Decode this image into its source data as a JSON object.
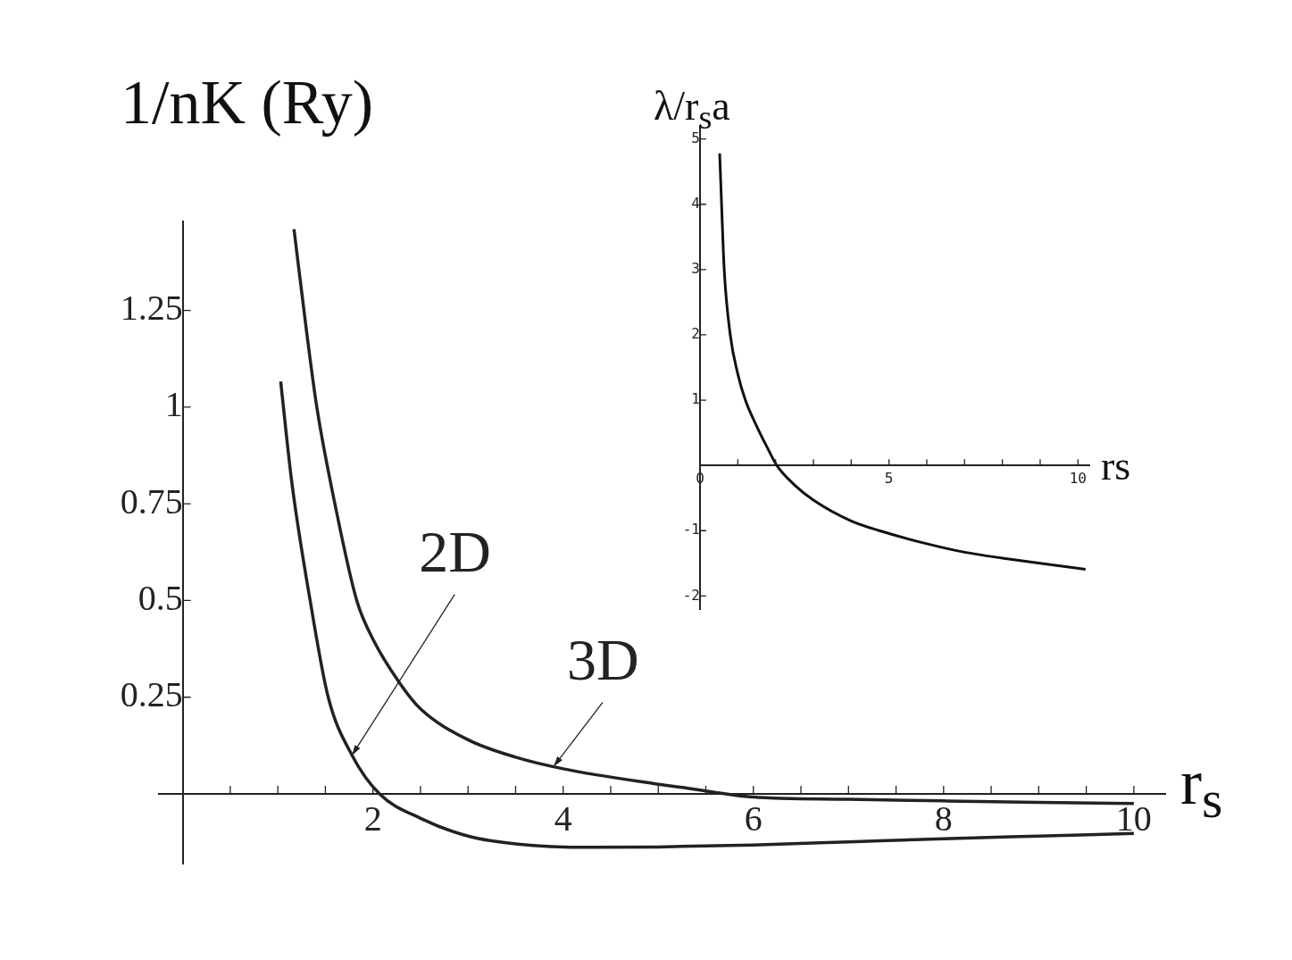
{
  "chart_data": [
    {
      "type": "line",
      "xlabel": "r$_{s}$",
      "ylabel": "1/nK (Ry)",
      "xlim": [
        -0.25,
        10.33
      ],
      "ylim": [
        -0.18,
        1.48
      ],
      "xticks": [
        {
          "value": 0.5,
          "label": null
        },
        {
          "value": 1,
          "label": null
        },
        {
          "value": 1.5,
          "label": null
        },
        2,
        {
          "value": 2.5,
          "label": null
        },
        {
          "value": 3,
          "label": null
        },
        {
          "value": 3.5,
          "label": null
        },
        4,
        {
          "value": 4.5,
          "label": null
        },
        {
          "value": 5,
          "label": null
        },
        {
          "value": 5.5,
          "label": null
        },
        6,
        {
          "value": 6.5,
          "label": null
        },
        {
          "value": 7,
          "label": null
        },
        {
          "value": 7.5,
          "label": null
        },
        8,
        {
          "value": 8.5,
          "label": null
        },
        {
          "value": 9,
          "label": null
        },
        {
          "value": 9.5,
          "label": null
        },
        10
      ],
      "yticks": [
        0.25,
        0.5,
        0.75,
        1,
        1.25
      ],
      "series": [
        {
          "color": "#222222",
          "x": [
            1.03,
            1.15,
            1.34,
            1.53,
            1.78,
            2.07,
            2.5,
            3,
            3.5,
            4.3,
            5,
            6,
            7,
            8,
            9,
            10
          ],
          "values": [
            1.066,
            0.8,
            0.5,
            0.25,
            0.1,
            0,
            -0.063,
            -0.109,
            -0.129,
            -0.138,
            -0.137,
            -0.132,
            -0.124,
            -0.116,
            -0.109,
            -0.102
          ]
        },
        {
          "color": "#222222",
          "x": [
            1.17,
            1.3,
            1.41,
            1.6,
            1.83,
            2,
            2.3,
            2.5,
            3,
            3.5,
            4,
            5,
            5.3,
            6,
            7,
            8,
            9,
            10
          ],
          "values": [
            1.46,
            1.2,
            1,
            0.75,
            0.5,
            0.4,
            0.28,
            0.22,
            0.14,
            0.095,
            0.065,
            0.025,
            0.015,
            -0.008,
            -0.014,
            -0.018,
            -0.022,
            -0.025
          ]
        }
      ],
      "annotations": [
        {
          "text": "2D",
          "x": 1.78,
          "y": 0.1
        },
        {
          "text": "3D",
          "x": 3.9,
          "y": 0.071
        }
      ]
    },
    {
      "type": "line",
      "xlabel": "rs",
      "ylabel": "λ/r$_{s}$a",
      "xlim": [
        0,
        10.3
      ],
      "ylim": [
        -2.2,
        5.2
      ],
      "xticks": [
        0,
        {
          "value": 1,
          "label": null
        },
        {
          "value": 2,
          "label": null
        },
        {
          "value": 3,
          "label": null
        },
        {
          "value": 4,
          "label": null
        },
        5,
        {
          "value": 6,
          "label": null
        },
        {
          "value": 7,
          "label": null
        },
        {
          "value": 8,
          "label": null
        },
        {
          "value": 9,
          "label": null
        },
        10
      ],
      "yticks": [
        -2,
        -1,
        1,
        2,
        3,
        4,
        5
      ],
      "series": [
        {
          "color": "#111111",
          "x": [
            0.52,
            0.57,
            0.64,
            0.8,
            1,
            1.2,
            1.5,
            1.8,
            2.03,
            2.5,
            3,
            4,
            4.75,
            6,
            7,
            8,
            9,
            10.2
          ],
          "values": [
            4.78,
            4,
            3,
            2,
            1.4,
            1,
            0.6,
            0.25,
            0,
            -0.3,
            -0.53,
            -0.85,
            -1,
            -1.2,
            -1.33,
            -1.42,
            -1.5,
            -1.59
          ]
        }
      ]
    }
  ]
}
